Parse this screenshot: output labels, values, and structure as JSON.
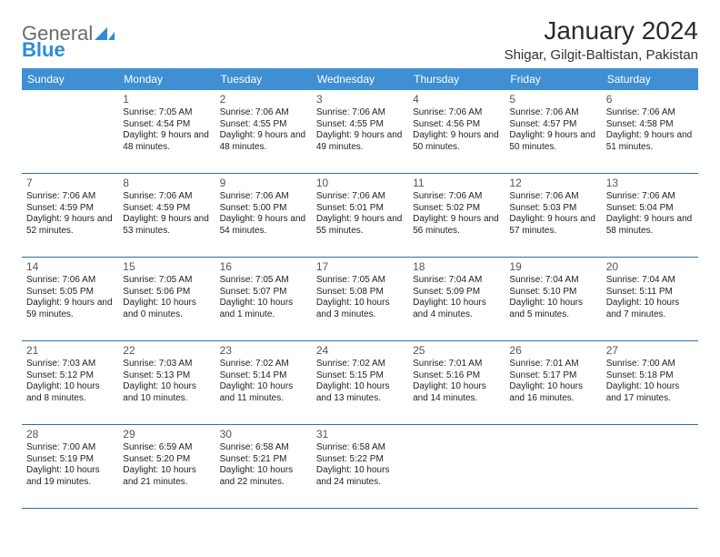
{
  "logo": {
    "text1": "General",
    "text2": "Blue"
  },
  "title": "January 2024",
  "subtitle": "Shigar, Gilgit-Baltistan, Pakistan",
  "colors": {
    "header_bg": "#3f8fd2",
    "header_text": "#ffffff",
    "row_border": "#2f6fa8",
    "logo_accent": "#2f8bd8",
    "logo_text": "#6b6b6b",
    "page_bg": "#ffffff"
  },
  "fonts": {
    "title_size_pt": 21,
    "subtitle_size_pt": 11,
    "th_size_pt": 9,
    "cell_size_pt": 7.5,
    "daynum_size_pt": 9
  },
  "weekdays": [
    "Sunday",
    "Monday",
    "Tuesday",
    "Wednesday",
    "Thursday",
    "Friday",
    "Saturday"
  ],
  "weeks": [
    [
      null,
      {
        "n": "1",
        "sr": "7:05 AM",
        "ss": "4:54 PM",
        "dl": "Daylight: 9 hours and 48 minutes."
      },
      {
        "n": "2",
        "sr": "7:06 AM",
        "ss": "4:55 PM",
        "dl": "Daylight: 9 hours and 48 minutes."
      },
      {
        "n": "3",
        "sr": "7:06 AM",
        "ss": "4:55 PM",
        "dl": "Daylight: 9 hours and 49 minutes."
      },
      {
        "n": "4",
        "sr": "7:06 AM",
        "ss": "4:56 PM",
        "dl": "Daylight: 9 hours and 50 minutes."
      },
      {
        "n": "5",
        "sr": "7:06 AM",
        "ss": "4:57 PM",
        "dl": "Daylight: 9 hours and 50 minutes."
      },
      {
        "n": "6",
        "sr": "7:06 AM",
        "ss": "4:58 PM",
        "dl": "Daylight: 9 hours and 51 minutes."
      }
    ],
    [
      {
        "n": "7",
        "sr": "7:06 AM",
        "ss": "4:59 PM",
        "dl": "Daylight: 9 hours and 52 minutes."
      },
      {
        "n": "8",
        "sr": "7:06 AM",
        "ss": "4:59 PM",
        "dl": "Daylight: 9 hours and 53 minutes."
      },
      {
        "n": "9",
        "sr": "7:06 AM",
        "ss": "5:00 PM",
        "dl": "Daylight: 9 hours and 54 minutes."
      },
      {
        "n": "10",
        "sr": "7:06 AM",
        "ss": "5:01 PM",
        "dl": "Daylight: 9 hours and 55 minutes."
      },
      {
        "n": "11",
        "sr": "7:06 AM",
        "ss": "5:02 PM",
        "dl": "Daylight: 9 hours and 56 minutes."
      },
      {
        "n": "12",
        "sr": "7:06 AM",
        "ss": "5:03 PM",
        "dl": "Daylight: 9 hours and 57 minutes."
      },
      {
        "n": "13",
        "sr": "7:06 AM",
        "ss": "5:04 PM",
        "dl": "Daylight: 9 hours and 58 minutes."
      }
    ],
    [
      {
        "n": "14",
        "sr": "7:06 AM",
        "ss": "5:05 PM",
        "dl": "Daylight: 9 hours and 59 minutes."
      },
      {
        "n": "15",
        "sr": "7:05 AM",
        "ss": "5:06 PM",
        "dl": "Daylight: 10 hours and 0 minutes."
      },
      {
        "n": "16",
        "sr": "7:05 AM",
        "ss": "5:07 PM",
        "dl": "Daylight: 10 hours and 1 minute."
      },
      {
        "n": "17",
        "sr": "7:05 AM",
        "ss": "5:08 PM",
        "dl": "Daylight: 10 hours and 3 minutes."
      },
      {
        "n": "18",
        "sr": "7:04 AM",
        "ss": "5:09 PM",
        "dl": "Daylight: 10 hours and 4 minutes."
      },
      {
        "n": "19",
        "sr": "7:04 AM",
        "ss": "5:10 PM",
        "dl": "Daylight: 10 hours and 5 minutes."
      },
      {
        "n": "20",
        "sr": "7:04 AM",
        "ss": "5:11 PM",
        "dl": "Daylight: 10 hours and 7 minutes."
      }
    ],
    [
      {
        "n": "21",
        "sr": "7:03 AM",
        "ss": "5:12 PM",
        "dl": "Daylight: 10 hours and 8 minutes."
      },
      {
        "n": "22",
        "sr": "7:03 AM",
        "ss": "5:13 PM",
        "dl": "Daylight: 10 hours and 10 minutes."
      },
      {
        "n": "23",
        "sr": "7:02 AM",
        "ss": "5:14 PM",
        "dl": "Daylight: 10 hours and 11 minutes."
      },
      {
        "n": "24",
        "sr": "7:02 AM",
        "ss": "5:15 PM",
        "dl": "Daylight: 10 hours and 13 minutes."
      },
      {
        "n": "25",
        "sr": "7:01 AM",
        "ss": "5:16 PM",
        "dl": "Daylight: 10 hours and 14 minutes."
      },
      {
        "n": "26",
        "sr": "7:01 AM",
        "ss": "5:17 PM",
        "dl": "Daylight: 10 hours and 16 minutes."
      },
      {
        "n": "27",
        "sr": "7:00 AM",
        "ss": "5:18 PM",
        "dl": "Daylight: 10 hours and 17 minutes."
      }
    ],
    [
      {
        "n": "28",
        "sr": "7:00 AM",
        "ss": "5:19 PM",
        "dl": "Daylight: 10 hours and 19 minutes."
      },
      {
        "n": "29",
        "sr": "6:59 AM",
        "ss": "5:20 PM",
        "dl": "Daylight: 10 hours and 21 minutes."
      },
      {
        "n": "30",
        "sr": "6:58 AM",
        "ss": "5:21 PM",
        "dl": "Daylight: 10 hours and 22 minutes."
      },
      {
        "n": "31",
        "sr": "6:58 AM",
        "ss": "5:22 PM",
        "dl": "Daylight: 10 hours and 24 minutes."
      },
      null,
      null,
      null
    ]
  ]
}
